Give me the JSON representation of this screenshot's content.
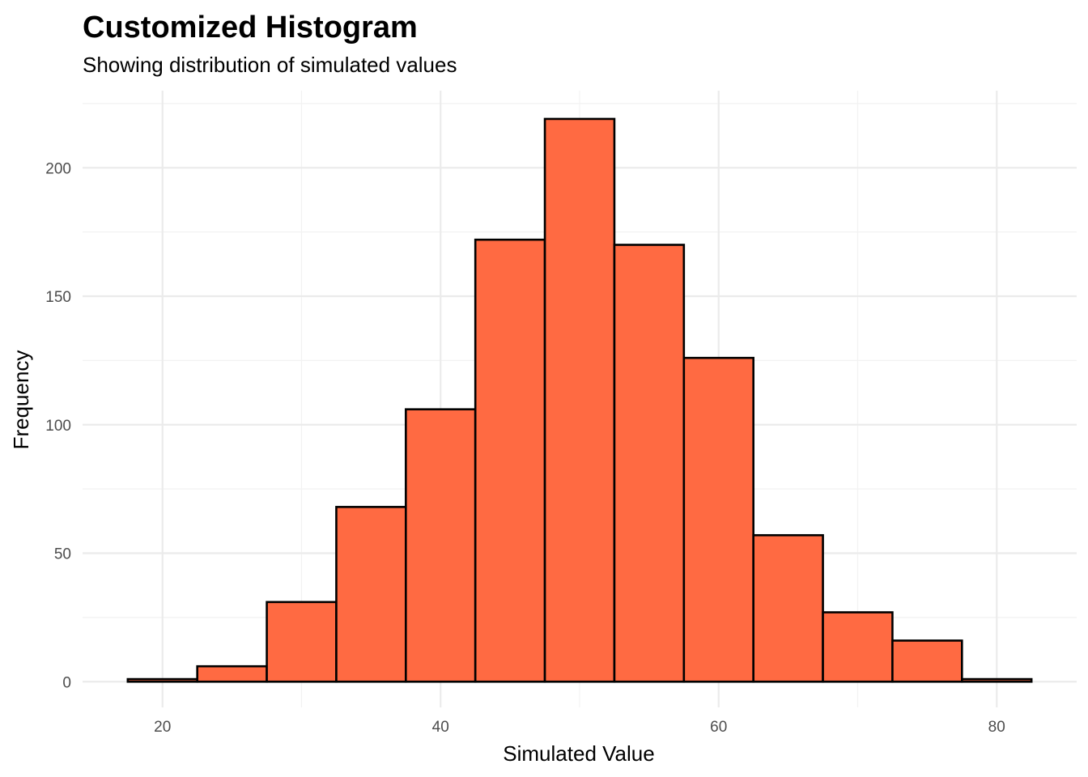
{
  "chart_data": {
    "type": "bar",
    "title": "Customized Histogram",
    "subtitle": "Showing distribution of simulated values",
    "xlabel": "Simulated Value",
    "ylabel": "Frequency",
    "bin_width": 5,
    "bins": [
      {
        "start": 17.5,
        "end": 22.5,
        "count": 1
      },
      {
        "start": 22.5,
        "end": 27.5,
        "count": 6
      },
      {
        "start": 27.5,
        "end": 32.5,
        "count": 31
      },
      {
        "start": 32.5,
        "end": 37.5,
        "count": 68
      },
      {
        "start": 37.5,
        "end": 42.5,
        "count": 106
      },
      {
        "start": 42.5,
        "end": 47.5,
        "count": 172
      },
      {
        "start": 47.5,
        "end": 52.5,
        "count": 219
      },
      {
        "start": 52.5,
        "end": 57.5,
        "count": 170
      },
      {
        "start": 57.5,
        "end": 62.5,
        "count": 126
      },
      {
        "start": 62.5,
        "end": 67.5,
        "count": 57
      },
      {
        "start": 67.5,
        "end": 72.5,
        "count": 27
      },
      {
        "start": 72.5,
        "end": 77.5,
        "count": 16
      },
      {
        "start": 77.5,
        "end": 82.5,
        "count": 1
      }
    ],
    "xlim": [
      14.25,
      85.75
    ],
    "ylim": [
      -10,
      230
    ],
    "x_ticks": [
      20,
      40,
      60,
      80
    ],
    "y_ticks": [
      0,
      50,
      100,
      150,
      200
    ],
    "grid": true,
    "legend": "none",
    "colors": {
      "fill": "#FF6A42",
      "outline": "#000000"
    }
  }
}
